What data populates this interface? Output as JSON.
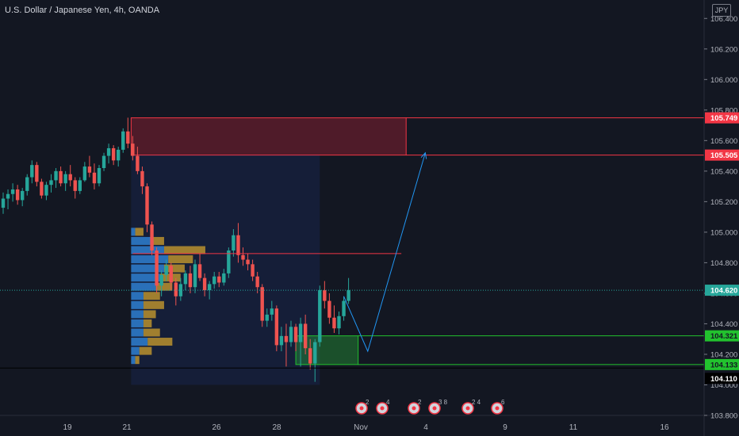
{
  "header": {
    "title": "U.S. Dollar / Japanese Yen, 4h, OANDA",
    "currency": "JPY"
  },
  "chart_data": {
    "type": "candlestick",
    "symbol": "USDJPY",
    "timeframe": "4h",
    "source": "OANDA",
    "ylim": [
      103.8,
      106.5
    ],
    "y_ticks": [
      "106.400",
      "106.200",
      "106.000",
      "105.800",
      "105.600",
      "105.400",
      "105.200",
      "105.000",
      "104.800",
      "104.600",
      "104.400",
      "104.200",
      "104.000",
      "103.800"
    ],
    "x_ticks": [
      "19",
      "21",
      "26",
      "28",
      "Nov",
      "4",
      "9",
      "11",
      "16"
    ],
    "price_labels": [
      {
        "text": "105.749",
        "value": 105.749,
        "kind": "zone-high"
      },
      {
        "text": "105.505",
        "value": 105.505,
        "kind": "zone-low"
      },
      {
        "text": "104.620",
        "value": 104.62,
        "kind": "last"
      },
      {
        "text": "104.321",
        "value": 104.321,
        "kind": "demand-high"
      },
      {
        "text": "104.133",
        "value": 104.133,
        "kind": "demand-low"
      },
      {
        "text": "104.110",
        "value": 104.11,
        "kind": "hline"
      }
    ],
    "candles": [
      {
        "o": 105.16,
        "h": 105.26,
        "l": 105.12,
        "c": 105.22
      },
      {
        "o": 105.22,
        "h": 105.28,
        "l": 105.15,
        "c": 105.25
      },
      {
        "o": 105.25,
        "h": 105.32,
        "l": 105.2,
        "c": 105.28
      },
      {
        "o": 105.28,
        "h": 105.31,
        "l": 105.18,
        "c": 105.21
      },
      {
        "o": 105.21,
        "h": 105.29,
        "l": 105.17,
        "c": 105.27
      },
      {
        "o": 105.27,
        "h": 105.38,
        "l": 105.24,
        "c": 105.36
      },
      {
        "o": 105.36,
        "h": 105.47,
        "l": 105.32,
        "c": 105.44
      },
      {
        "o": 105.44,
        "h": 105.46,
        "l": 105.3,
        "c": 105.33
      },
      {
        "o": 105.33,
        "h": 105.35,
        "l": 105.22,
        "c": 105.24
      },
      {
        "o": 105.24,
        "h": 105.33,
        "l": 105.21,
        "c": 105.31
      },
      {
        "o": 105.31,
        "h": 105.38,
        "l": 105.26,
        "c": 105.34
      },
      {
        "o": 105.34,
        "h": 105.42,
        "l": 105.29,
        "c": 105.4
      },
      {
        "o": 105.4,
        "h": 105.43,
        "l": 105.3,
        "c": 105.32
      },
      {
        "o": 105.32,
        "h": 105.4,
        "l": 105.27,
        "c": 105.38
      },
      {
        "o": 105.38,
        "h": 105.44,
        "l": 105.3,
        "c": 105.34
      },
      {
        "o": 105.34,
        "h": 105.36,
        "l": 105.22,
        "c": 105.27
      },
      {
        "o": 105.27,
        "h": 105.36,
        "l": 105.25,
        "c": 105.34
      },
      {
        "o": 105.34,
        "h": 105.46,
        "l": 105.33,
        "c": 105.43
      },
      {
        "o": 105.43,
        "h": 105.5,
        "l": 105.36,
        "c": 105.39
      },
      {
        "o": 105.39,
        "h": 105.45,
        "l": 105.28,
        "c": 105.32
      },
      {
        "o": 105.32,
        "h": 105.44,
        "l": 105.3,
        "c": 105.42
      },
      {
        "o": 105.42,
        "h": 105.52,
        "l": 105.4,
        "c": 105.5
      },
      {
        "o": 105.5,
        "h": 105.58,
        "l": 105.45,
        "c": 105.55
      },
      {
        "o": 105.55,
        "h": 105.57,
        "l": 105.44,
        "c": 105.47
      },
      {
        "o": 105.47,
        "h": 105.56,
        "l": 105.43,
        "c": 105.54
      },
      {
        "o": 105.54,
        "h": 105.68,
        "l": 105.52,
        "c": 105.66
      },
      {
        "o": 105.66,
        "h": 105.75,
        "l": 105.55,
        "c": 105.58
      },
      {
        "o": 105.58,
        "h": 105.63,
        "l": 105.47,
        "c": 105.5
      },
      {
        "o": 105.5,
        "h": 105.56,
        "l": 105.38,
        "c": 105.4
      },
      {
        "o": 105.4,
        "h": 105.43,
        "l": 105.25,
        "c": 105.3
      },
      {
        "o": 105.3,
        "h": 105.32,
        "l": 105.0,
        "c": 105.05
      },
      {
        "o": 105.05,
        "h": 105.07,
        "l": 104.85,
        "c": 104.88
      },
      {
        "o": 104.88,
        "h": 104.9,
        "l": 104.6,
        "c": 104.65
      },
      {
        "o": 104.65,
        "h": 104.75,
        "l": 104.58,
        "c": 104.72
      },
      {
        "o": 104.72,
        "h": 104.82,
        "l": 104.68,
        "c": 104.78
      },
      {
        "o": 104.78,
        "h": 104.8,
        "l": 104.62,
        "c": 104.67
      },
      {
        "o": 104.67,
        "h": 104.7,
        "l": 104.52,
        "c": 104.58
      },
      {
        "o": 104.58,
        "h": 104.7,
        "l": 104.55,
        "c": 104.66
      },
      {
        "o": 104.66,
        "h": 104.75,
        "l": 104.62,
        "c": 104.73
      },
      {
        "o": 104.73,
        "h": 104.78,
        "l": 104.6,
        "c": 104.64
      },
      {
        "o": 104.64,
        "h": 104.82,
        "l": 104.6,
        "c": 104.79
      },
      {
        "o": 104.79,
        "h": 104.86,
        "l": 104.68,
        "c": 104.7
      },
      {
        "o": 104.7,
        "h": 104.73,
        "l": 104.58,
        "c": 104.62
      },
      {
        "o": 104.62,
        "h": 104.68,
        "l": 104.56,
        "c": 104.66
      },
      {
        "o": 104.66,
        "h": 104.74,
        "l": 104.63,
        "c": 104.71
      },
      {
        "o": 104.71,
        "h": 104.74,
        "l": 104.64,
        "c": 104.67
      },
      {
        "o": 104.67,
        "h": 104.76,
        "l": 104.65,
        "c": 104.73
      },
      {
        "o": 104.73,
        "h": 104.9,
        "l": 104.7,
        "c": 104.88
      },
      {
        "o": 104.88,
        "h": 105.02,
        "l": 104.84,
        "c": 104.98
      },
      {
        "o": 104.98,
        "h": 105.06,
        "l": 104.8,
        "c": 104.85
      },
      {
        "o": 104.85,
        "h": 104.9,
        "l": 104.78,
        "c": 104.82
      },
      {
        "o": 104.82,
        "h": 104.86,
        "l": 104.75,
        "c": 104.79
      },
      {
        "o": 104.79,
        "h": 104.82,
        "l": 104.68,
        "c": 104.71
      },
      {
        "o": 104.71,
        "h": 104.74,
        "l": 104.6,
        "c": 104.64
      },
      {
        "o": 104.64,
        "h": 104.66,
        "l": 104.38,
        "c": 104.42
      },
      {
        "o": 104.42,
        "h": 104.5,
        "l": 104.38,
        "c": 104.46
      },
      {
        "o": 104.46,
        "h": 104.55,
        "l": 104.42,
        "c": 104.5
      },
      {
        "o": 104.5,
        "h": 104.52,
        "l": 104.22,
        "c": 104.26
      },
      {
        "o": 104.26,
        "h": 104.38,
        "l": 104.22,
        "c": 104.32
      },
      {
        "o": 104.32,
        "h": 104.4,
        "l": 104.12,
        "c": 104.28
      },
      {
        "o": 104.28,
        "h": 104.42,
        "l": 104.25,
        "c": 104.38
      },
      {
        "o": 104.38,
        "h": 104.4,
        "l": 104.22,
        "c": 104.28
      },
      {
        "o": 104.28,
        "h": 104.44,
        "l": 104.12,
        "c": 104.4
      },
      {
        "o": 104.4,
        "h": 104.46,
        "l": 104.2,
        "c": 104.24
      },
      {
        "o": 104.24,
        "h": 104.3,
        "l": 104.1,
        "c": 104.14
      },
      {
        "o": 104.14,
        "h": 104.3,
        "l": 104.02,
        "c": 104.28
      },
      {
        "o": 104.28,
        "h": 104.65,
        "l": 104.25,
        "c": 104.62
      },
      {
        "o": 104.62,
        "h": 104.68,
        "l": 104.5,
        "c": 104.55
      },
      {
        "o": 104.55,
        "h": 104.6,
        "l": 104.4,
        "c": 104.44
      },
      {
        "o": 104.44,
        "h": 104.52,
        "l": 104.34,
        "c": 104.37
      },
      {
        "o": 104.37,
        "h": 104.48,
        "l": 104.33,
        "c": 104.45
      },
      {
        "o": 104.45,
        "h": 104.58,
        "l": 104.42,
        "c": 104.55
      },
      {
        "o": 104.55,
        "h": 104.7,
        "l": 104.53,
        "c": 104.62
      }
    ],
    "supply_zone": {
      "from_bar": 27,
      "to_bar": 84,
      "top": 105.749,
      "bottom": 105.505,
      "color": "#801922"
    },
    "demand_zone": {
      "from_bar": 61,
      "to_bar": 74,
      "top": 104.321,
      "bottom": 104.133,
      "color": "#1e5a22"
    },
    "poc_line": {
      "from_bar": 27,
      "to_bar": 83,
      "price": 104.86,
      "color": "#f23645"
    },
    "projection": {
      "points": [
        {
          "bar": 71,
          "price": 104.58
        },
        {
          "bar": 76,
          "price": 104.22
        },
        {
          "bar": 88,
          "price": 105.52
        }
      ],
      "color": "#2196f3"
    },
    "volume_profile": {
      "bins": [
        {
          "price": 105.0,
          "up": 1,
          "down": 2
        },
        {
          "price": 104.94,
          "up": 5,
          "down": 3
        },
        {
          "price": 104.88,
          "up": 8,
          "down": 10
        },
        {
          "price": 104.82,
          "up": 9,
          "down": 6
        },
        {
          "price": 104.76,
          "up": 8,
          "down": 5
        },
        {
          "price": 104.7,
          "up": 7,
          "down": 5
        },
        {
          "price": 104.64,
          "up": 6,
          "down": 4
        },
        {
          "price": 104.58,
          "up": 3,
          "down": 4
        },
        {
          "price": 104.52,
          "up": 3,
          "down": 5
        },
        {
          "price": 104.46,
          "up": 3,
          "down": 3
        },
        {
          "price": 104.4,
          "up": 3,
          "down": 2
        },
        {
          "price": 104.34,
          "up": 3,
          "down": 4
        },
        {
          "price": 104.28,
          "up": 4,
          "down": 6
        },
        {
          "price": 104.22,
          "up": 2,
          "down": 3
        },
        {
          "price": 104.16,
          "up": 1,
          "down": 1
        }
      ]
    },
    "colors": {
      "up": "#26a69a",
      "down": "#ef5350",
      "background": "#131722",
      "text": "#b2b5be"
    },
    "events": [
      "2",
      "4",
      "2",
      "3 8",
      "2 4",
      "6"
    ]
  }
}
